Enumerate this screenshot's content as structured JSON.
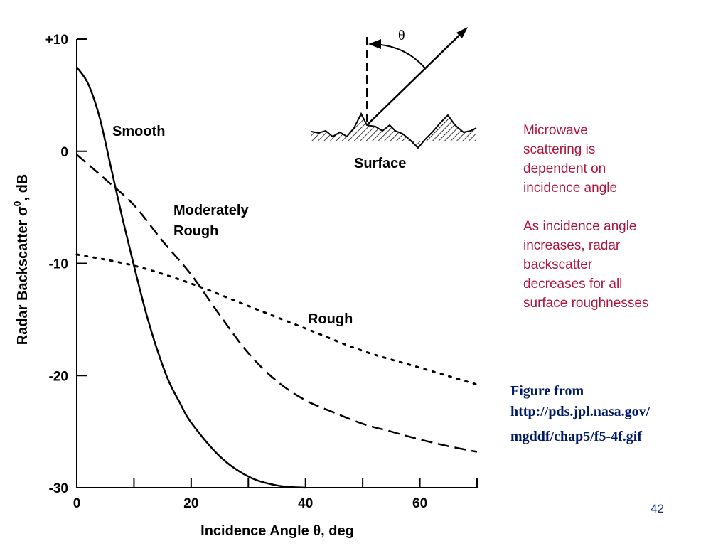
{
  "colors": {
    "note_text": "#b0143c",
    "source_text": "#001a66",
    "slide_number": "#1f2a80",
    "chart_ink": "#000000"
  },
  "inset": {
    "angle_symbol": "θ",
    "surface_label": "Surface"
  },
  "notes": {
    "note1": "Microwave\nscattering is\ndependent on\nincidence angle",
    "note2": "As incidence angle\nincreases, radar\nbackscatter\ndecreases for all\nsurface roughnesses"
  },
  "source": {
    "line1": "Figure from",
    "line2": "http://pds.jpl.nasa.gov/",
    "line3": "mgddf/chap5/f5-4f.gif"
  },
  "slide_number": "42",
  "chart_data": {
    "type": "line",
    "xlabel": "Incidence Angle θ, deg",
    "ylabel": "Radar Backscatter σ",
    "ylabel_superscript": "0",
    "ylabel_suffix": ", dB",
    "xlim": [
      0,
      70
    ],
    "ylim": [
      -30,
      10
    ],
    "x_ticks": [
      0,
      20,
      40,
      60
    ],
    "x_minor_ticks": [
      10,
      30,
      50,
      70
    ],
    "y_ticks": [
      10,
      0,
      -10,
      -20,
      -30
    ],
    "y_tick_labels": [
      "+10",
      "0",
      "-10",
      "-20",
      "-30"
    ],
    "grid": false,
    "series": [
      {
        "name": "Smooth",
        "style": "solid",
        "x": [
          0,
          2,
          4,
          6,
          8,
          10,
          12,
          14,
          16,
          18,
          20,
          25,
          30,
          35,
          40
        ],
        "y": [
          7.5,
          6.0,
          3.0,
          -1.5,
          -6.0,
          -10.2,
          -14.2,
          -17.6,
          -20.4,
          -22.4,
          -24.2,
          -27.2,
          -29.0,
          -29.8,
          -30.0
        ]
      },
      {
        "name": "Moderately Rough",
        "style": "dashed",
        "x": [
          0,
          5,
          10,
          15,
          20,
          25,
          30,
          35,
          40,
          45,
          50,
          55,
          60,
          65,
          70
        ],
        "y": [
          -0.3,
          -2.5,
          -4.8,
          -8.0,
          -11.0,
          -14.6,
          -18.0,
          -20.5,
          -22.2,
          -23.3,
          -24.3,
          -25.0,
          -25.7,
          -26.3,
          -26.8
        ]
      },
      {
        "name": "Rough",
        "style": "dotted",
        "x": [
          0,
          10,
          20,
          30,
          40,
          50,
          60,
          70
        ],
        "y": [
          -9.2,
          -10.2,
          -11.8,
          -13.8,
          -15.8,
          -17.8,
          -19.3,
          -20.8
        ]
      }
    ]
  }
}
